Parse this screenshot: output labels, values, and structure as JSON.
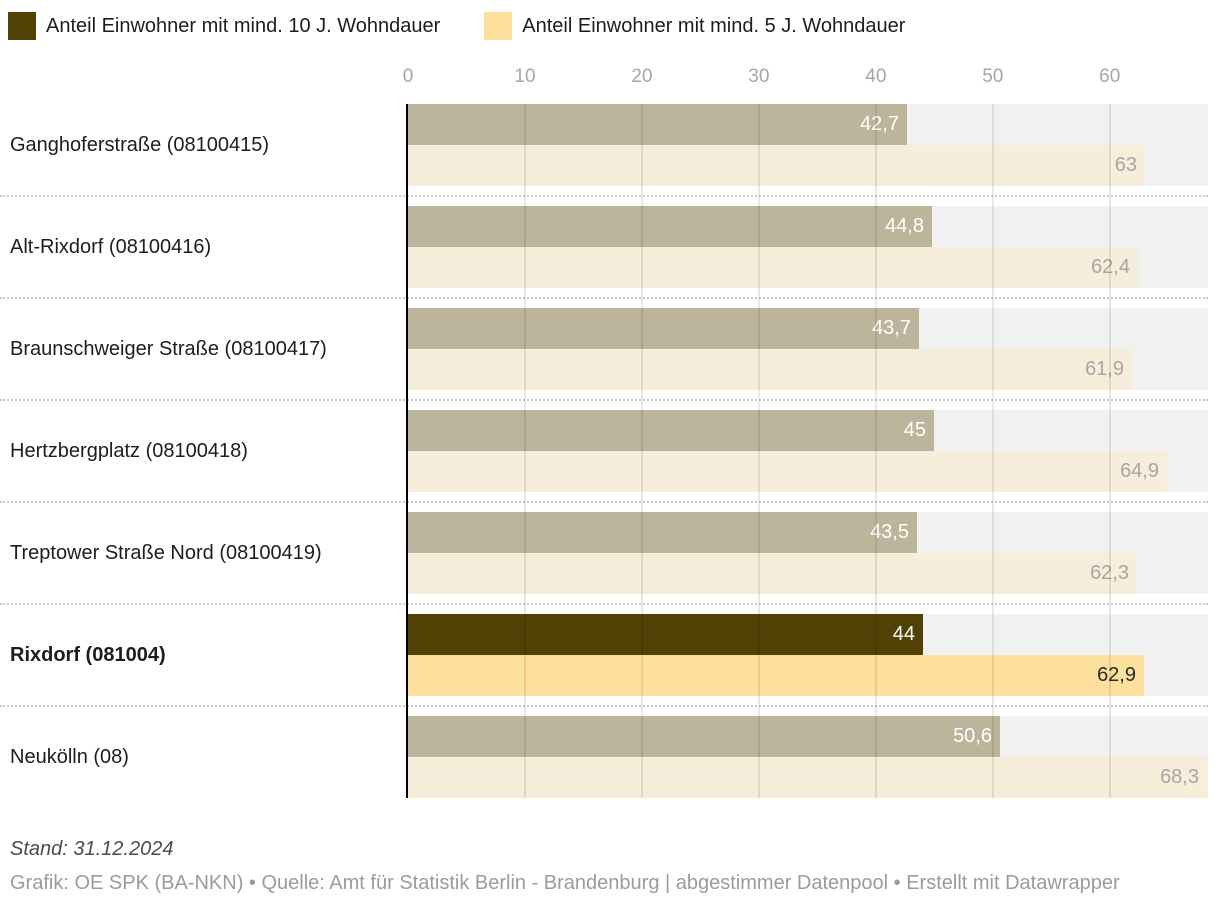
{
  "legend": {
    "items": [
      {
        "label": "Anteil Einwohner mit mind. 10 J. Wohndauer",
        "color": "#514104"
      },
      {
        "label": "Anteil Einwohner mit mind. 5 J. Wohndauer",
        "color": "#fde09c"
      }
    ]
  },
  "chart_data": {
    "type": "bar",
    "orientation": "horizontal",
    "title": "",
    "xlabel": "",
    "ylabel": "",
    "categories": [
      "Ganghoferstraße (08100415)",
      "Alt-Rixdorf (08100416)",
      "Braunschweiger Straße (08100417)",
      "Hertzbergplatz (08100418)",
      "Treptower Straße Nord (08100419)",
      "Rixdorf (081004)",
      "Neukölln (08)"
    ],
    "series": [
      {
        "name": "Anteil Einwohner mit mind. 10 J. Wohndauer",
        "values": [
          42.7,
          44.8,
          43.7,
          45,
          43.5,
          44,
          50.6
        ]
      },
      {
        "name": "Anteil Einwohner mit mind. 5 J. Wohndauer",
        "values": [
          63,
          62.4,
          61.9,
          64.9,
          62.3,
          62.9,
          68.3
        ]
      }
    ],
    "value_labels": [
      [
        "42,7",
        "63"
      ],
      [
        "44,8",
        "62,4"
      ],
      [
        "43,7",
        "61,9"
      ],
      [
        "45",
        "64,9"
      ],
      [
        "43,5",
        "62,3"
      ],
      [
        "44",
        "62,9"
      ],
      [
        "50,6",
        "68,3"
      ]
    ],
    "highlighted_category": "Rixdorf (081004)",
    "highlight_index": 5,
    "x_ticks": [
      0,
      10,
      20,
      30,
      40,
      50,
      60
    ],
    "xlim": [
      0,
      68.4
    ],
    "grid": true,
    "legend_position": "top"
  },
  "colors": {
    "highlight_dark": "#514104",
    "highlight_light": "#fde09c",
    "muted_dark": "#bdb59b",
    "muted_light": "#f6eeda",
    "row_background": "#f1f1f1",
    "value_on_dark": "#ffffff",
    "value_on_muted_light": "#a6a6a6",
    "value_on_highlight_light": "#2b2b2b",
    "axis_tick": "#a6a6a6",
    "gridline": "rgba(0,0,0,0.09)"
  },
  "footer": {
    "note": "Stand: 31.12.2024",
    "credits": "Grafik: OE SPK (BA-NKN) • Quelle: Amt für Statistik Berlin - Brandenburg | abgestimmer Datenpool • Erstellt mit Datawrapper"
  }
}
